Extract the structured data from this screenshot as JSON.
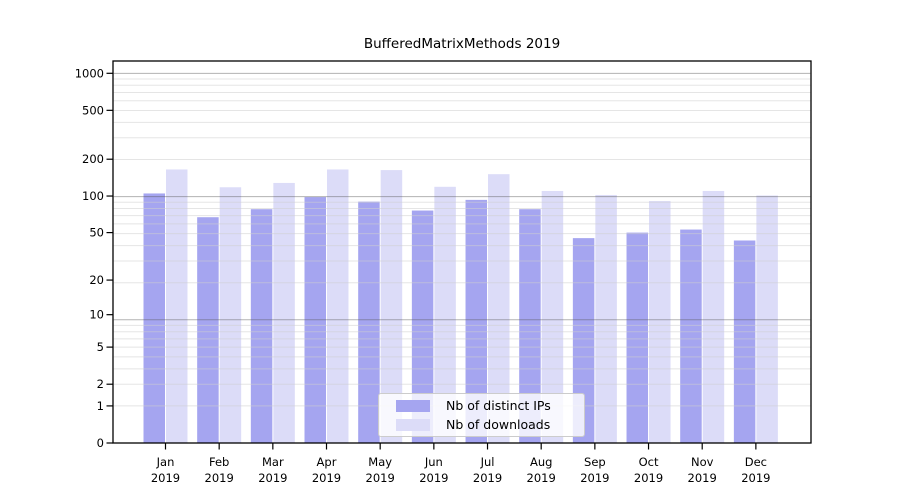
{
  "chart_data": {
    "type": "bar",
    "title": "BufferedMatrixMethods 2019",
    "categories": [
      "Jan",
      "Feb",
      "Mar",
      "Apr",
      "May",
      "Jun",
      "Jul",
      "Aug",
      "Sep",
      "Oct",
      "Nov",
      "Dec"
    ],
    "category_year": "2019",
    "series": [
      {
        "name": "Nb of distinct IPs",
        "color": "#a5a5f0",
        "values": [
          105,
          67,
          78,
          98,
          90,
          76,
          93,
          78,
          45,
          50,
          53,
          43
        ]
      },
      {
        "name": "Nb of downloads",
        "color": "#dcdcf8",
        "values": [
          165,
          118,
          128,
          165,
          163,
          119,
          151,
          110,
          102,
          91,
          110,
          101
        ]
      }
    ],
    "yticks": [
      1000,
      500,
      200,
      100,
      50,
      20,
      10,
      5,
      2,
      1,
      0
    ],
    "yscale": "log(1+x)",
    "ylim": [
      0,
      1260
    ],
    "xlabel": "",
    "ylabel": "",
    "grid": "log minor + major gridlines, drawn over bars",
    "legend_position": "lower center"
  },
  "colors": {
    "background": "#ffffff",
    "axis": "#000000",
    "text": "#000000",
    "grid_major": "#b4b4b4",
    "grid_minor": "#e6e6e6",
    "legend_border": "#cccccc"
  }
}
